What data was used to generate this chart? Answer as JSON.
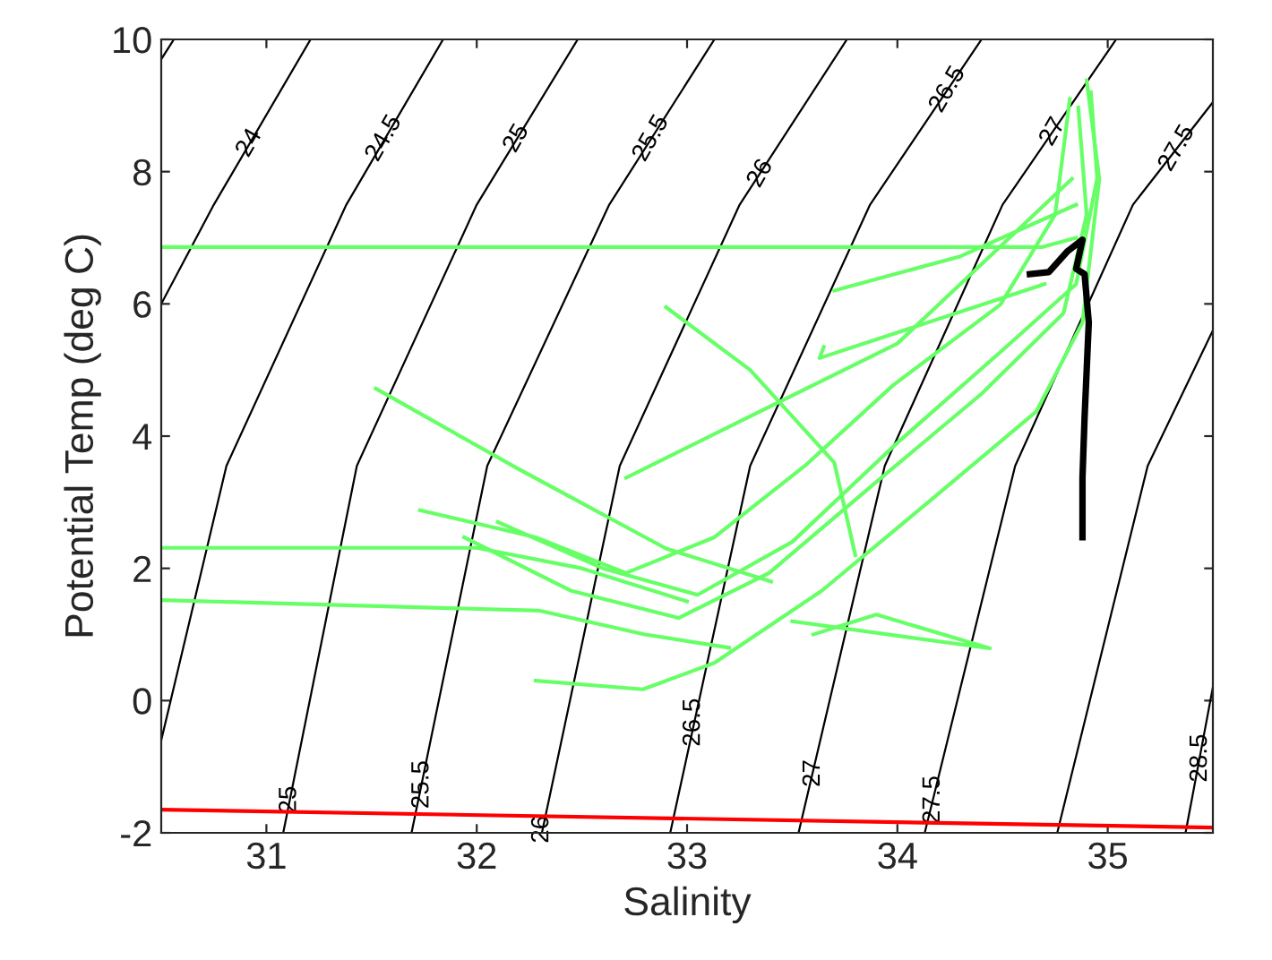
{
  "chart_data": {
    "type": "line",
    "xlabel": "Salinity",
    "ylabel": "Potential Temp (deg C)",
    "xlim": [
      30.5,
      35.5
    ],
    "ylim": [
      -2,
      10
    ],
    "xticks": [
      31,
      32,
      33,
      34,
      35
    ],
    "yticks": [
      -2,
      0,
      2,
      4,
      6,
      8,
      10
    ],
    "grid": false,
    "legend": false,
    "marker": "none",
    "line_style": "solid",
    "series": [
      {
        "color": "#000000",
        "x": [
          30.5,
          30.56
        ],
        "values": [
          9.7,
          10
        ]
      },
      {
        "color": "#000000",
        "x": [
          30.5,
          30.75,
          31.21
        ],
        "values": [
          6.0,
          7.5,
          10
        ]
      },
      {
        "color": "#000000",
        "x": [
          30.5,
          30.81,
          31.38,
          31.84
        ],
        "values": [
          -0.6,
          3.55,
          7.5,
          10
        ]
      },
      {
        "color": "#000000",
        "x": [
          31.08,
          31.43,
          32.0,
          32.48
        ],
        "values": [
          -2,
          3.55,
          7.5,
          10
        ]
      },
      {
        "color": "#000000",
        "x": [
          31.69,
          32.05,
          32.63,
          33.13
        ],
        "values": [
          -2,
          3.55,
          7.5,
          10
        ]
      },
      {
        "color": "#000000",
        "x": [
          32.31,
          32.68,
          33.25,
          33.76
        ],
        "values": [
          -2,
          3.55,
          7.5,
          10
        ]
      },
      {
        "color": "#000000",
        "x": [
          32.92,
          33.3,
          33.87,
          34.4
        ],
        "values": [
          -2,
          3.55,
          7.5,
          10
        ]
      },
      {
        "color": "#000000",
        "x": [
          33.53,
          33.94,
          34.5,
          35.04
        ],
        "values": [
          -2,
          3.55,
          7.5,
          10
        ]
      },
      {
        "color": "#000000",
        "x": [
          34.13,
          34.56,
          35.12,
          35.5
        ],
        "values": [
          -2,
          3.55,
          7.5,
          9.05
        ]
      },
      {
        "color": "#000000",
        "x": [
          34.76,
          35.19,
          35.5
        ],
        "values": [
          -2,
          3.55,
          5.6
        ]
      },
      {
        "color": "#000000",
        "x": [
          35.37,
          35.5
        ],
        "values": [
          -2,
          0.2
        ]
      },
      {
        "color": "#ff0000",
        "x": [
          30.5,
          35.5
        ],
        "values": [
          -1.65,
          -1.92
        ]
      },
      {
        "color": "#66ff66",
        "x": [
          30.5,
          34.69,
          34.85
        ],
        "values": [
          6.86,
          6.86,
          7.0
        ]
      },
      {
        "color": "#66ff66",
        "x": [
          30.5,
          32.0,
          32.5,
          33.0
        ],
        "values": [
          2.31,
          2.31,
          2.0,
          1.5
        ]
      },
      {
        "color": "#66ff66",
        "x": [
          30.5,
          32.3,
          32.8,
          33.2
        ],
        "values": [
          1.52,
          1.36,
          1.0,
          0.8
        ]
      },
      {
        "color": "#66ff66",
        "x": [
          31.52,
          32.2,
          32.9,
          33.4
        ],
        "values": [
          4.72,
          3.5,
          2.3,
          1.8
        ]
      },
      {
        "color": "#66ff66",
        "x": [
          32.9,
          33.3,
          33.7,
          33.8
        ],
        "values": [
          5.95,
          5.0,
          3.6,
          2.2
        ]
      },
      {
        "color": "#66ff66",
        "x": [
          32.28,
          32.79,
          33.13,
          33.64,
          34.15,
          34.66,
          34.88,
          34.96,
          34.9
        ],
        "values": [
          0.3,
          0.17,
          0.57,
          1.66,
          3.01,
          4.37,
          5.72,
          7.89,
          9.38
        ]
      },
      {
        "color": "#66ff66",
        "x": [
          31.73,
          32.28,
          32.71,
          33.13,
          33.56,
          33.98,
          34.49,
          34.75,
          34.82
        ],
        "values": [
          2.88,
          2.47,
          1.93,
          2.47,
          3.55,
          4.77,
          5.99,
          7.35,
          9.1
        ]
      },
      {
        "color": "#66ff66",
        "x": [
          31.94,
          32.45,
          32.96,
          33.39,
          33.89,
          34.4,
          34.79,
          34.9,
          34.86
        ],
        "values": [
          2.47,
          1.66,
          1.25,
          1.93,
          3.28,
          4.64,
          5.86,
          7.35,
          8.97
        ]
      },
      {
        "color": "#66ff66",
        "x": [
          32.1,
          32.6,
          33.05,
          33.5,
          34.0,
          34.5,
          34.85,
          34.95,
          34.92
        ],
        "values": [
          2.7,
          2.0,
          1.6,
          2.4,
          3.9,
          5.3,
          6.3,
          7.9,
          9.2
        ]
      },
      {
        "color": "#66ff66",
        "x": [
          33.5,
          34.44,
          33.9,
          33.6
        ],
        "values": [
          1.2,
          0.79,
          1.3,
          1.0
        ]
      },
      {
        "color": "#66ff66",
        "x": [
          32.71,
          33.3,
          34.0,
          34.83
        ],
        "values": [
          3.37,
          4.3,
          5.4,
          7.89
        ]
      },
      {
        "color": "#66ff66",
        "x": [
          34.7,
          33.63,
          33.65
        ],
        "values": [
          6.3,
          5.18,
          5.35
        ]
      },
      {
        "color": "#66ff66",
        "x": [
          33.7,
          34.3,
          34.85
        ],
        "values": [
          6.2,
          6.72,
          7.5
        ]
      },
      {
        "color": "#000000",
        "x": [
          34.63,
          34.72,
          34.81,
          34.88,
          34.85,
          34.89,
          34.91,
          34.89,
          34.88,
          34.88
        ],
        "values": [
          6.45,
          6.48,
          6.8,
          6.97,
          6.53,
          6.45,
          5.72,
          4.28,
          3.37,
          2.47
        ]
      }
    ],
    "annotations": [
      {
        "text": "24",
        "x": 30.92,
        "y": 8.43
      },
      {
        "text": "24.5",
        "x": 31.56,
        "y": 8.5
      },
      {
        "text": "25",
        "x": 32.19,
        "y": 8.5
      },
      {
        "text": "25.5",
        "x": 32.83,
        "y": 8.5
      },
      {
        "text": "26",
        "x": 33.35,
        "y": 7.97
      },
      {
        "text": "26.5",
        "x": 34.24,
        "y": 9.24
      },
      {
        "text": "27",
        "x": 34.74,
        "y": 8.6
      },
      {
        "text": "27.5",
        "x": 35.33,
        "y": 8.35
      },
      {
        "text": "25",
        "x": 31.11,
        "y": -1.5
      },
      {
        "text": "25.5",
        "x": 31.74,
        "y": -1.27
      },
      {
        "text": "26",
        "x": 32.31,
        "y": -1.95
      },
      {
        "text": "26.5",
        "x": 33.03,
        "y": -0.33
      },
      {
        "text": "27",
        "x": 33.6,
        "y": -1.1
      },
      {
        "text": "27.5",
        "x": 34.17,
        "y": -1.5
      },
      {
        "text": "28.5",
        "x": 35.44,
        "y": -0.87
      }
    ]
  }
}
